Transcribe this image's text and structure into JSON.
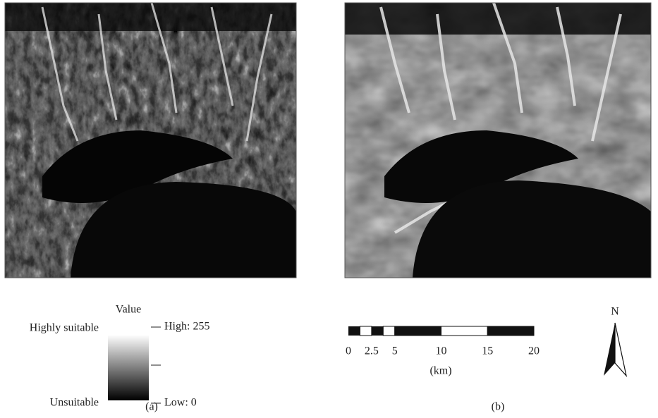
{
  "panels": [
    {
      "label": "(a)"
    },
    {
      "label": "(b)"
    }
  ],
  "legend": {
    "title": "Value",
    "high_class": "Highly suitable",
    "low_class": "Unsuitable",
    "high_label": "High: 255",
    "low_label": "Low: 0"
  },
  "scale_bar": {
    "ticks": [
      0,
      2.5,
      5,
      10,
      15,
      20
    ],
    "unit": "(km)"
  },
  "north_arrow": {
    "label": "N"
  }
}
